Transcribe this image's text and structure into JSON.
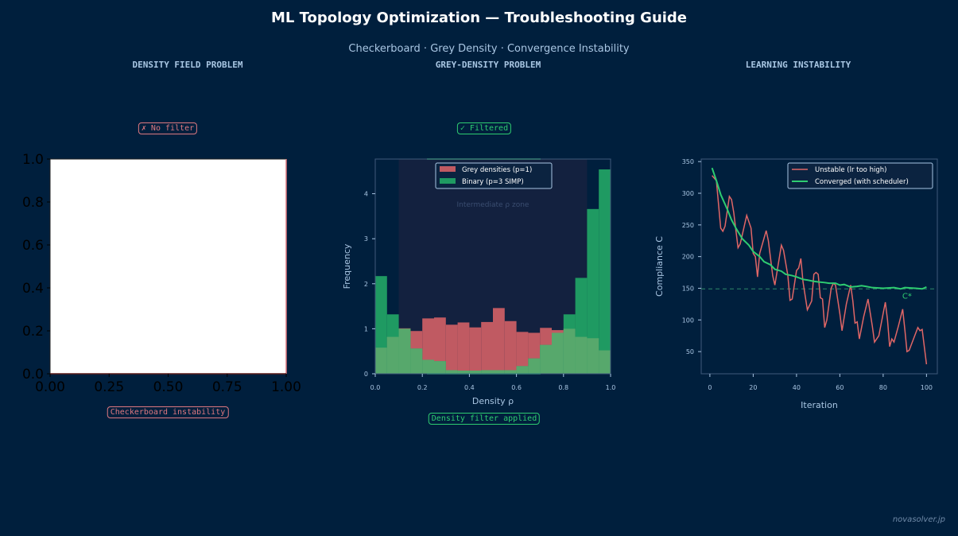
{
  "title": "ML Topology Optimization — Troubleshooting Guide",
  "subtitle": "Checkerboard  ·  Grey Density  ·  Convergence Instability",
  "watermark": "novasolver.jp",
  "colors": {
    "background": "#001f3d",
    "unstable": "#e06666",
    "converged": "#2ecc71",
    "grey_bar": "#c05a62",
    "binary_bar": "#1f9a62",
    "band": "#13213f"
  },
  "panels": [
    {
      "title": "DENSITY FIELD PROBLEM",
      "top_badge": "✗ No filter",
      "bottom_badge": "Checkerboard instability"
    },
    {
      "title": "GREY-DENSITY PROBLEM",
      "top_badge": "✓ Filtered",
      "bottom_badge": "Density filter applied"
    },
    {
      "title": "LEARNING INSTABILITY"
    }
  ],
  "chart_data": [
    {
      "type": "empty-axes",
      "xlim": [
        0,
        1
      ],
      "ylim": [
        0,
        1
      ],
      "xticks": [
        "0.00",
        "0.25",
        "0.50",
        "0.75",
        "1.00"
      ],
      "yticks": [
        "0.0",
        "0.2",
        "0.4",
        "0.6",
        "0.8",
        "1.0"
      ]
    },
    {
      "type": "bar",
      "xlabel": "Density  ρ",
      "ylabel": "Frequency",
      "xlim": [
        0,
        1
      ],
      "ylim": [
        0,
        4.77
      ],
      "xticks": [
        "0.0",
        "0.2",
        "0.4",
        "0.6",
        "0.8",
        "1.0"
      ],
      "yticks": [
        "0",
        "1",
        "2",
        "3",
        "4"
      ],
      "bin_edges": [
        0,
        0.05,
        0.1,
        0.15,
        0.2,
        0.25,
        0.3,
        0.35,
        0.4,
        0.45,
        0.5,
        0.55,
        0.6,
        0.65,
        0.7,
        0.75,
        0.8,
        0.85,
        0.9,
        0.95,
        1.0
      ],
      "shaded_band": {
        "range": [
          0.1,
          0.9
        ],
        "label": "Intermediate ρ zone"
      },
      "legend": "top-center",
      "series": [
        {
          "name": "Grey densities (p=1)",
          "values": [
            0.58,
            0.82,
            1.01,
            0.95,
            1.23,
            1.25,
            1.09,
            1.14,
            1.03,
            1.15,
            1.46,
            1.17,
            0.93,
            0.91,
            1.02,
            0.97,
            1.0,
            0.82,
            0.79,
            0.52
          ]
        },
        {
          "name": "Binary (p=3 SIMP)",
          "values": [
            2.17,
            1.32,
            1.0,
            0.56,
            0.31,
            0.28,
            0.08,
            0.07,
            0.07,
            0.08,
            0.08,
            0.08,
            0.17,
            0.34,
            0.64,
            0.91,
            1.32,
            2.13,
            3.66,
            4.54
          ]
        }
      ]
    },
    {
      "type": "line",
      "xlabel": "Iteration",
      "ylabel": "Compliance  C",
      "xlim": [
        -4,
        105
      ],
      "ylim": [
        15,
        354
      ],
      "xticks": [
        "0",
        "20",
        "40",
        "60",
        "80",
        "100"
      ],
      "yticks": [
        "50",
        "100",
        "150",
        "200",
        "250",
        "300",
        "350"
      ],
      "legend": "top-right",
      "reference": {
        "y": 149,
        "label": "C*"
      },
      "series": [
        {
          "name": "Unstable (lr too high)",
          "x": [
            1,
            3,
            5,
            6,
            7,
            9,
            10,
            11,
            13,
            14,
            17,
            19,
            20,
            21,
            22,
            23,
            26,
            27,
            29,
            30,
            33,
            34,
            36,
            37,
            38,
            40,
            41,
            42,
            43,
            45,
            47,
            48,
            49,
            50,
            51,
            52,
            53,
            54,
            56,
            57,
            58,
            60,
            61,
            63,
            65,
            66,
            67,
            68,
            69,
            71,
            73,
            75,
            76,
            78,
            81,
            82,
            83,
            84,
            85,
            87,
            89,
            90,
            91,
            92,
            96,
            97,
            98,
            100
          ],
          "y": [
            328,
            320,
            245,
            240,
            248,
            295,
            290,
            270,
            214,
            220,
            265,
            245,
            205,
            200,
            168,
            205,
            241,
            225,
            170,
            155,
            218,
            210,
            170,
            131,
            133,
            178,
            182,
            197,
            160,
            116,
            130,
            172,
            175,
            172,
            135,
            133,
            88,
            100,
            150,
            158,
            155,
            110,
            83,
            125,
            155,
            130,
            95,
            97,
            70,
            105,
            133,
            90,
            65,
            75,
            128,
            100,
            58,
            70,
            65,
            90,
            117,
            85,
            50,
            52,
            88,
            83,
            85,
            30
          ]
        },
        {
          "name": "Converged (with scheduler)",
          "x": [
            1,
            3,
            5,
            8,
            10,
            12,
            15,
            18,
            20,
            23,
            25,
            28,
            30,
            33,
            35,
            38,
            40,
            43,
            45,
            48,
            50,
            53,
            55,
            58,
            60,
            62,
            65,
            68,
            70,
            72,
            75,
            80,
            85,
            88,
            90,
            95,
            98,
            100
          ],
          "y": [
            340,
            320,
            298,
            275,
            258,
            245,
            228,
            218,
            208,
            200,
            192,
            187,
            180,
            177,
            172,
            170,
            168,
            164,
            163,
            161,
            160,
            159,
            158,
            158,
            155,
            156,
            152,
            153,
            154,
            153,
            151,
            150,
            151,
            149,
            151,
            150,
            149,
            152
          ]
        }
      ]
    }
  ]
}
